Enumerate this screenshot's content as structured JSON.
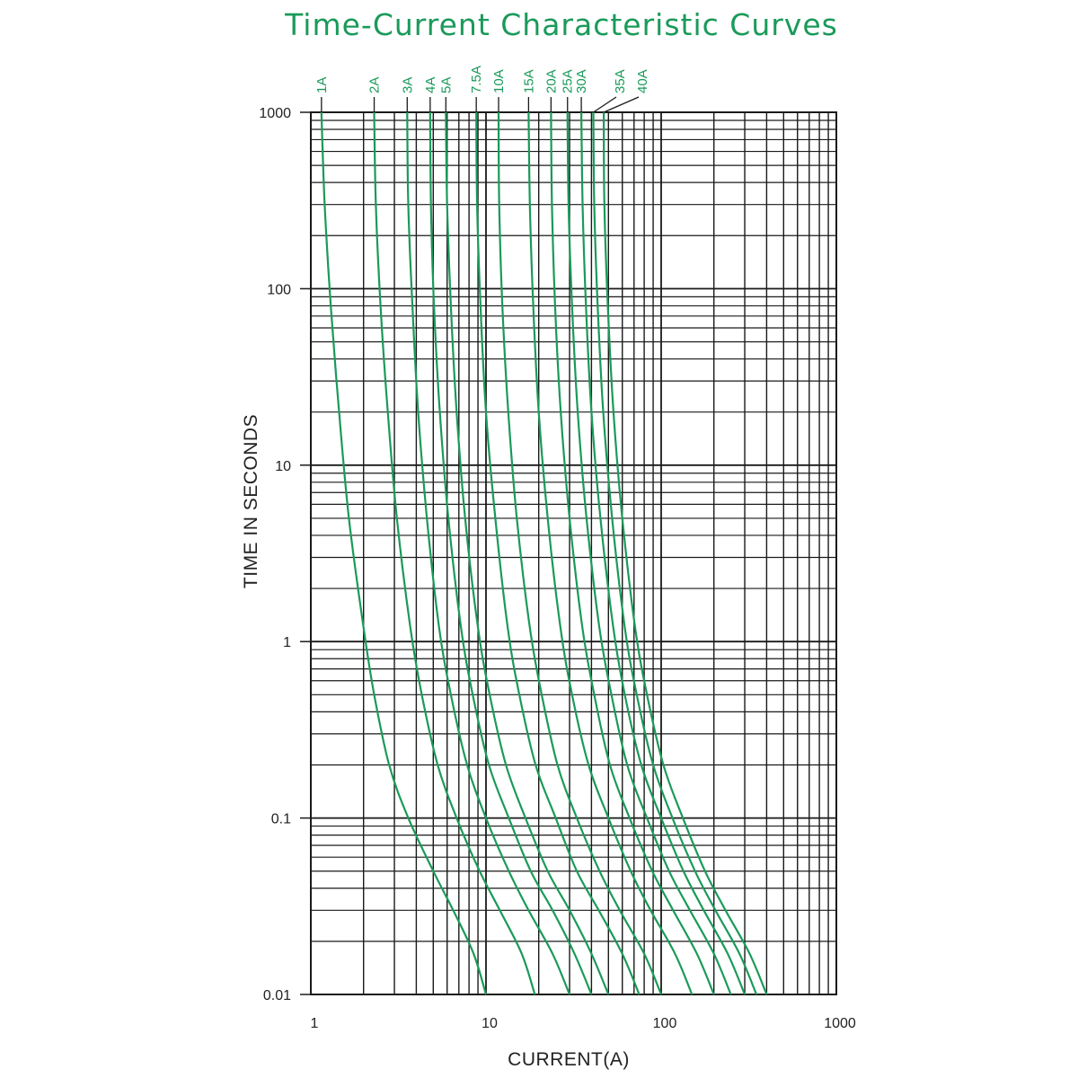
{
  "chart_data": {
    "type": "line",
    "title": "Time-Current Characteristic Curves",
    "xlabel": "CURRENT(A)",
    "ylabel": "TIME IN SECONDS",
    "xscale": "log",
    "yscale": "log",
    "xlim": [
      1,
      1000
    ],
    "ylim": [
      0.01,
      1000
    ],
    "xticks": [
      "1",
      "10",
      "100",
      "1000"
    ],
    "yticks": [
      "0.01",
      "0.1",
      "1",
      "10",
      "100",
      "1000"
    ],
    "grid": true,
    "line_color": "#1a9a5a",
    "series": [
      {
        "name": "1A",
        "points": [
          [
            1.15,
            1000
          ],
          [
            1.2,
            300
          ],
          [
            1.3,
            80
          ],
          [
            1.45,
            20
          ],
          [
            1.65,
            5
          ],
          [
            2.0,
            1.2
          ],
          [
            2.3,
            0.5
          ],
          [
            2.8,
            0.2
          ],
          [
            3.6,
            0.1
          ],
          [
            5,
            0.05
          ],
          [
            6.5,
            0.03
          ],
          [
            8.5,
            0.017
          ],
          [
            10,
            0.01
          ]
        ]
      },
      {
        "name": "2A",
        "points": [
          [
            2.3,
            1000
          ],
          [
            2.35,
            300
          ],
          [
            2.5,
            80
          ],
          [
            2.75,
            20
          ],
          [
            3.1,
            5
          ],
          [
            3.7,
            1.2
          ],
          [
            4.3,
            0.5
          ],
          [
            5.3,
            0.2
          ],
          [
            6.8,
            0.1
          ],
          [
            9.2,
            0.05
          ],
          [
            12,
            0.03
          ],
          [
            16,
            0.017
          ],
          [
            19,
            0.01
          ]
        ]
      },
      {
        "name": "3A",
        "points": [
          [
            3.55,
            1000
          ],
          [
            3.6,
            300
          ],
          [
            3.8,
            80
          ],
          [
            4.1,
            20
          ],
          [
            4.6,
            5
          ],
          [
            5.4,
            1.2
          ],
          [
            6.3,
            0.5
          ],
          [
            7.8,
            0.2
          ],
          [
            10,
            0.1
          ],
          [
            13.5,
            0.05
          ],
          [
            17.5,
            0.03
          ],
          [
            24,
            0.017
          ],
          [
            30,
            0.01
          ]
        ]
      },
      {
        "name": "4A",
        "points": [
          [
            4.8,
            1000
          ],
          [
            4.85,
            300
          ],
          [
            5.05,
            80
          ],
          [
            5.45,
            20
          ],
          [
            6.1,
            5
          ],
          [
            7.2,
            1.2
          ],
          [
            8.4,
            0.5
          ],
          [
            10.4,
            0.2
          ],
          [
            13.5,
            0.1
          ],
          [
            18,
            0.05
          ],
          [
            24,
            0.03
          ],
          [
            32,
            0.017
          ],
          [
            40,
            0.01
          ]
        ]
      },
      {
        "name": "5A",
        "points": [
          [
            5.9,
            1000
          ],
          [
            6.0,
            300
          ],
          [
            6.3,
            80
          ],
          [
            6.8,
            20
          ],
          [
            7.6,
            5
          ],
          [
            9,
            1.2
          ],
          [
            10.5,
            0.5
          ],
          [
            13,
            0.2
          ],
          [
            16.8,
            0.1
          ],
          [
            22.5,
            0.05
          ],
          [
            30,
            0.03
          ],
          [
            40,
            0.017
          ],
          [
            50,
            0.01
          ]
        ]
      },
      {
        "name": "7.5A",
        "points": [
          [
            8.8,
            1000
          ],
          [
            8.9,
            300
          ],
          [
            9.3,
            80
          ],
          [
            10,
            20
          ],
          [
            11.3,
            5
          ],
          [
            13.3,
            1.2
          ],
          [
            15.5,
            0.5
          ],
          [
            19.2,
            0.2
          ],
          [
            25,
            0.1
          ],
          [
            33,
            0.05
          ],
          [
            44,
            0.03
          ],
          [
            60,
            0.017
          ],
          [
            75,
            0.01
          ]
        ]
      },
      {
        "name": "10A",
        "points": [
          [
            11.8,
            1000
          ],
          [
            11.9,
            300
          ],
          [
            12.4,
            80
          ],
          [
            13.4,
            20
          ],
          [
            15,
            5
          ],
          [
            17.8,
            1.2
          ],
          [
            20.8,
            0.5
          ],
          [
            25.6,
            0.2
          ],
          [
            33,
            0.1
          ],
          [
            44.5,
            0.05
          ],
          [
            58,
            0.03
          ],
          [
            80,
            0.017
          ],
          [
            100,
            0.01
          ]
        ]
      },
      {
        "name": "15A",
        "points": [
          [
            17.5,
            1000
          ],
          [
            17.8,
            300
          ],
          [
            18.6,
            80
          ],
          [
            20,
            20
          ],
          [
            22.5,
            5
          ],
          [
            26.6,
            1.2
          ],
          [
            31,
            0.5
          ],
          [
            38.5,
            0.2
          ],
          [
            50,
            0.1
          ],
          [
            67,
            0.05
          ],
          [
            87,
            0.03
          ],
          [
            120,
            0.017
          ],
          [
            150,
            0.01
          ]
        ]
      },
      {
        "name": "20A",
        "points": [
          [
            23.5,
            1000
          ],
          [
            23.8,
            300
          ],
          [
            24.8,
            80
          ],
          [
            26.7,
            20
          ],
          [
            30,
            5
          ],
          [
            35.5,
            1.2
          ],
          [
            41.5,
            0.5
          ],
          [
            51,
            0.2
          ],
          [
            66,
            0.1
          ],
          [
            89,
            0.05
          ],
          [
            117,
            0.03
          ],
          [
            160,
            0.017
          ],
          [
            200,
            0.01
          ]
        ]
      },
      {
        "name": "25A",
        "points": [
          [
            29.2,
            1000
          ],
          [
            29.6,
            300
          ],
          [
            31,
            80
          ],
          [
            33.4,
            20
          ],
          [
            37.5,
            5
          ],
          [
            44.4,
            1.2
          ],
          [
            52,
            0.5
          ],
          [
            64,
            0.2
          ],
          [
            83,
            0.1
          ],
          [
            111,
            0.05
          ],
          [
            146,
            0.03
          ],
          [
            200,
            0.017
          ],
          [
            250,
            0.01
          ]
        ]
      },
      {
        "name": "30A",
        "points": [
          [
            35,
            1000
          ],
          [
            35.6,
            300
          ],
          [
            37.2,
            80
          ],
          [
            40,
            20
          ],
          [
            45,
            5
          ],
          [
            53.3,
            1.2
          ],
          [
            62,
            0.5
          ],
          [
            77,
            0.2
          ],
          [
            100,
            0.1
          ],
          [
            134,
            0.05
          ],
          [
            175,
            0.03
          ],
          [
            240,
            0.017
          ],
          [
            300,
            0.01
          ]
        ]
      },
      {
        "name": "35A",
        "points": [
          [
            41,
            1000
          ],
          [
            41.5,
            300
          ],
          [
            43.4,
            80
          ],
          [
            46.7,
            20
          ],
          [
            52.5,
            5
          ],
          [
            62,
            1.2
          ],
          [
            72.5,
            0.5
          ],
          [
            90,
            0.2
          ],
          [
            116,
            0.1
          ],
          [
            156,
            0.05
          ],
          [
            204,
            0.03
          ],
          [
            280,
            0.017
          ],
          [
            350,
            0.01
          ]
        ]
      },
      {
        "name": "40A",
        "points": [
          [
            47,
            1000
          ],
          [
            47.4,
            300
          ],
          [
            49.6,
            80
          ],
          [
            53.4,
            20
          ],
          [
            60,
            5
          ],
          [
            71,
            1.2
          ],
          [
            83,
            0.5
          ],
          [
            103,
            0.2
          ],
          [
            133,
            0.1
          ],
          [
            178,
            0.05
          ],
          [
            233,
            0.03
          ],
          [
            320,
            0.017
          ],
          [
            400,
            0.01
          ]
        ]
      }
    ]
  }
}
